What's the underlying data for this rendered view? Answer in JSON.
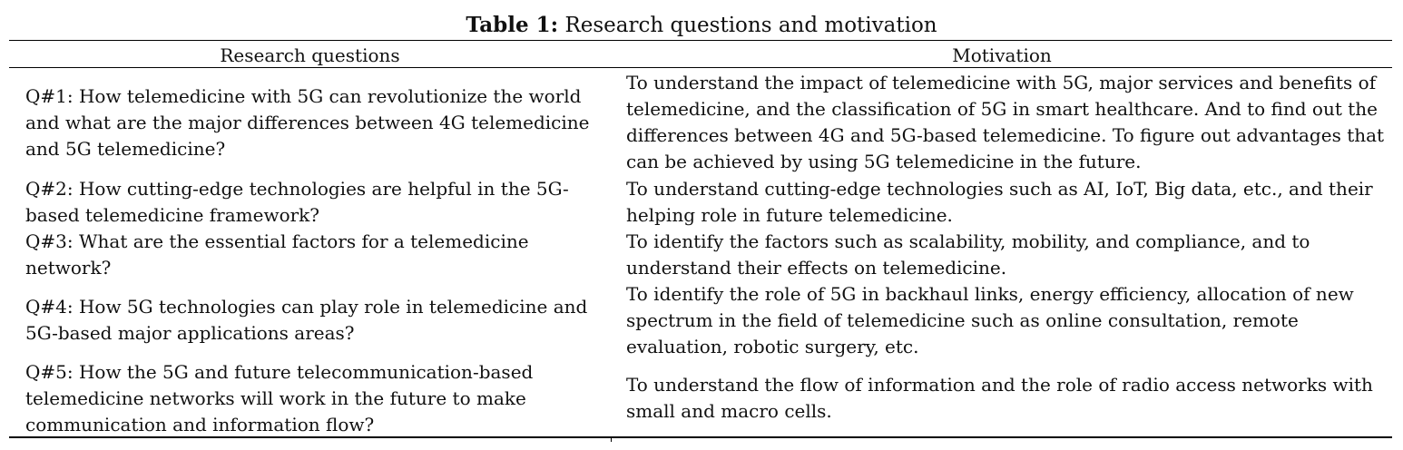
{
  "table": {
    "caption_label": "Table 1:",
    "caption_text": " Research questions and motivation",
    "headers": {
      "research_questions": "Research questions",
      "motivation": "Motivation"
    },
    "rows": [
      {
        "question": "Q#1: How telemedicine with 5G can revolutionize the world and what are the major differences between 4G telemedicine and 5G telemedicine?",
        "motivation": "To understand the impact of telemedicine with 5G, major services and benefits of telemedicine, and the classification of 5G in smart healthcare. And to find out the differences between 4G and 5G-based telemedicine. To figure out advantages that can be achieved by using 5G telemedicine in the future."
      },
      {
        "question": "Q#2: How cutting-edge technologies are helpful in the 5G-based telemedicine framework?",
        "motivation": "To understand cutting-edge technologies such as AI, IoT, Big data, etc., and their helping role in future telemedicine."
      },
      {
        "question": "Q#3: What are the essential factors for a telemedicine network?",
        "motivation": "To identify the factors such as scalability, mobility, and compliance, and to understand their effects on telemedicine."
      },
      {
        "question": "Q#4: How 5G technologies can play role in telemedicine and 5G-based major applications areas?",
        "motivation": "To identify the role of 5G in backhaul links, energy efficiency, allocation of new spectrum in the field of telemedicine such as online consultation, remote evaluation, robotic surgery, etc."
      },
      {
        "question": "Q#5: How the 5G and future telecommunication-based telemedicine networks will work in the future to make communication and information flow?",
        "motivation": "To understand the flow of information and the role of radio access networks with small and macro cells."
      }
    ]
  }
}
